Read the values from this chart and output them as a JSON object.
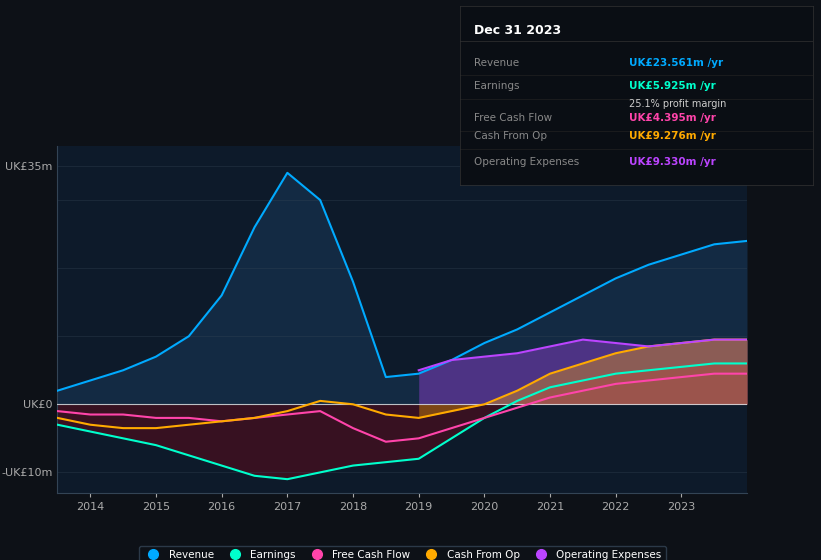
{
  "background_color": "#0d1117",
  "plot_bg_color": "#0d1a2a",
  "title": "Dec 31 2023",
  "years": [
    2013.5,
    2014,
    2014.5,
    2015,
    2015.5,
    2016,
    2016.5,
    2017,
    2017.5,
    2018,
    2018.5,
    2019,
    2019.5,
    2020,
    2020.5,
    2021,
    2021.5,
    2022,
    2022.5,
    2023,
    2023.5,
    2024.0
  ],
  "revenue": [
    2.0,
    3.5,
    5.0,
    7.0,
    10.0,
    16.0,
    26.0,
    34.0,
    30.0,
    18.0,
    4.0,
    4.5,
    6.5,
    9.0,
    11.0,
    13.5,
    16.0,
    18.5,
    20.5,
    22.0,
    23.5,
    24.0
  ],
  "earnings": [
    -3.0,
    -4.0,
    -5.0,
    -6.0,
    -7.5,
    -9.0,
    -10.5,
    -11.0,
    -10.0,
    -9.0,
    -8.5,
    -8.0,
    -5.0,
    -2.0,
    0.5,
    2.5,
    3.5,
    4.5,
    5.0,
    5.5,
    6.0,
    6.0
  ],
  "free_cash_flow": [
    -1.0,
    -1.5,
    -1.5,
    -2.0,
    -2.0,
    -2.5,
    -2.0,
    -1.5,
    -1.0,
    -3.5,
    -5.5,
    -5.0,
    -3.5,
    -2.0,
    -0.5,
    1.0,
    2.0,
    3.0,
    3.5,
    4.0,
    4.5,
    4.5
  ],
  "cash_from_op": [
    -2.0,
    -3.0,
    -3.5,
    -3.5,
    -3.0,
    -2.5,
    -2.0,
    -1.0,
    0.5,
    0.0,
    -1.5,
    -2.0,
    -1.0,
    0.0,
    2.0,
    4.5,
    6.0,
    7.5,
    8.5,
    9.0,
    9.5,
    9.5
  ],
  "operating_expenses": [
    0.0,
    0.0,
    0.0,
    0.0,
    0.0,
    0.0,
    0.0,
    0.0,
    0.0,
    0.0,
    0.0,
    5.0,
    6.5,
    7.0,
    7.5,
    8.5,
    9.5,
    9.0,
    8.5,
    9.0,
    9.5,
    9.5
  ],
  "revenue_color": "#00aaff",
  "earnings_color": "#00ffcc",
  "fcf_color": "#ff44aa",
  "cashop_color": "#ffaa00",
  "opex_color": "#bb44ff",
  "revenue_fill": "#1a3a5c",
  "earnings_fill": "#5a0a1a",
  "ylim": [
    -13,
    38
  ],
  "yticks": [
    -10,
    0,
    35
  ],
  "ytick_labels": [
    "-UK£10m",
    "UK£0",
    "UK£35m"
  ],
  "xtick_years": [
    2014,
    2015,
    2016,
    2017,
    2018,
    2019,
    2020,
    2021,
    2022,
    2023
  ],
  "legend_items": [
    "Revenue",
    "Earnings",
    "Free Cash Flow",
    "Cash From Op",
    "Operating Expenses"
  ],
  "legend_colors": [
    "#00aaff",
    "#00ffcc",
    "#ff44aa",
    "#ffaa00",
    "#bb44ff"
  ],
  "info_box": {
    "title": "Dec 31 2023",
    "rows": [
      {
        "label": "Revenue",
        "value": "UK£23.561m /yr",
        "value_color": "#00aaff",
        "sub_label": "",
        "sub_value": ""
      },
      {
        "label": "Earnings",
        "value": "UK£5.925m /yr",
        "value_color": "#00ffcc",
        "sub_label": "",
        "sub_value": "25.1% profit margin"
      },
      {
        "label": "Free Cash Flow",
        "value": "UK£4.395m /yr",
        "value_color": "#ff44aa",
        "sub_label": "",
        "sub_value": ""
      },
      {
        "label": "Cash From Op",
        "value": "UK£9.276m /yr",
        "value_color": "#ffaa00",
        "sub_label": "",
        "sub_value": ""
      },
      {
        "label": "Operating Expenses",
        "value": "UK£9.330m /yr",
        "value_color": "#bb44ff",
        "sub_label": "",
        "sub_value": ""
      }
    ]
  }
}
